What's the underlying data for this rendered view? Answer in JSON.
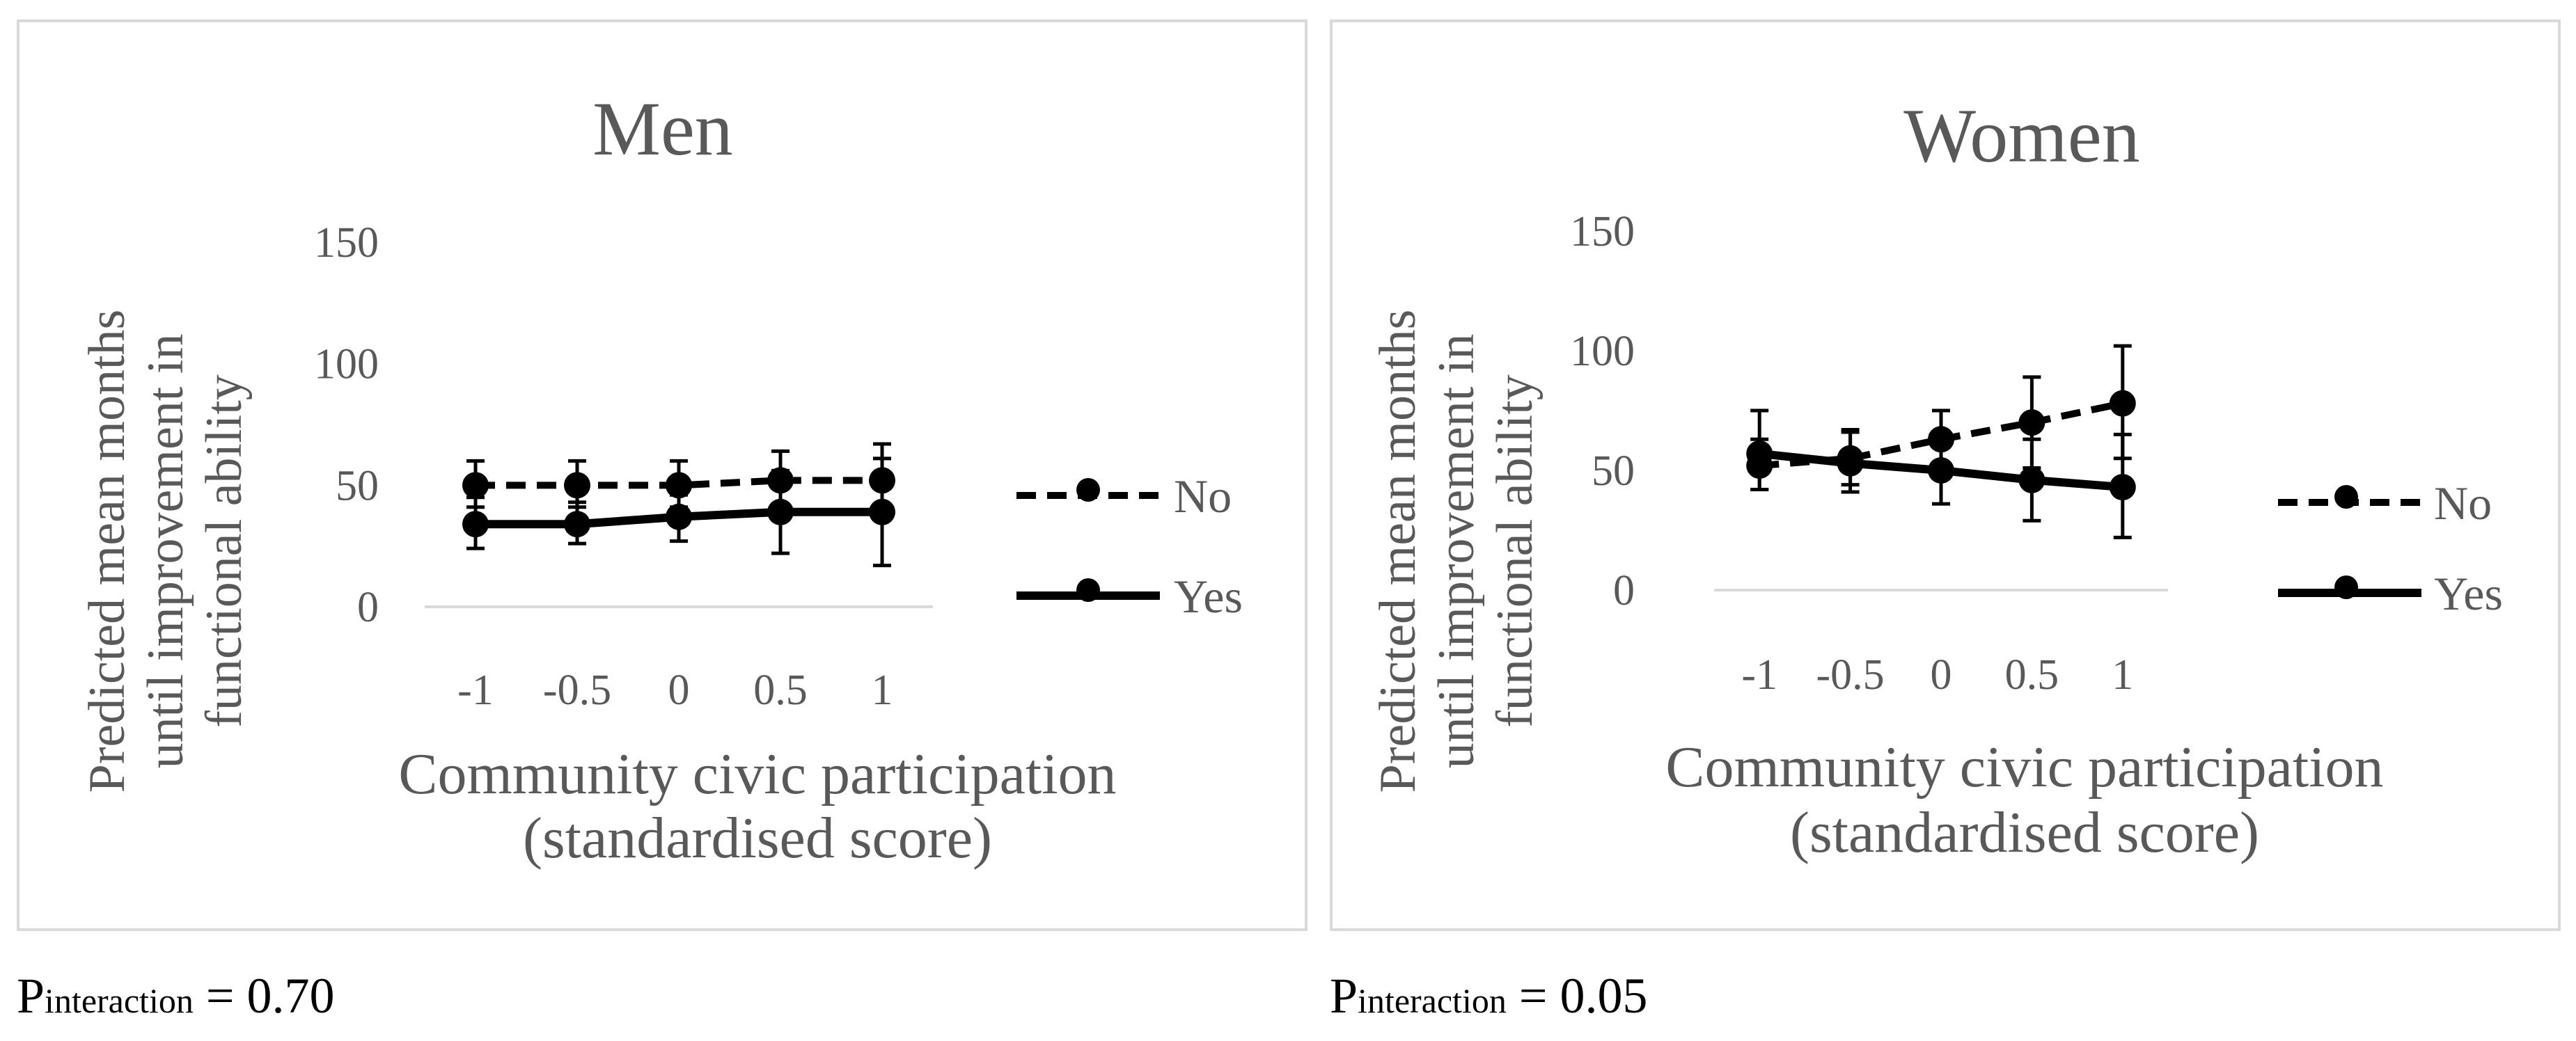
{
  "chart_data": [
    {
      "type": "line",
      "title": "Men",
      "xlabel": [
        "Community civic participation",
        "(standardised score)"
      ],
      "ylabel": [
        "Predicted mean months",
        "until improvement in",
        "functional ability"
      ],
      "categories": [
        "-1",
        "-0.5",
        "0",
        "0.5",
        "1"
      ],
      "y_ticks": [
        "0",
        "50",
        "100",
        "150"
      ],
      "ylim": [
        0,
        150
      ],
      "grid": false,
      "legend_position": "right",
      "series": [
        {
          "name": "No",
          "style": "dashed",
          "values": [
            50,
            50,
            50,
            52,
            52
          ],
          "error_low": [
            41,
            41,
            41,
            41,
            38
          ],
          "error_high": [
            60,
            60,
            60,
            64,
            67
          ]
        },
        {
          "name": "Yes",
          "style": "solid",
          "values": [
            34,
            34,
            37,
            39,
            39
          ],
          "error_low": [
            24,
            26,
            27,
            22,
            17
          ],
          "error_high": [
            45,
            43,
            46,
            56,
            61
          ]
        }
      ],
      "annotation": {
        "prefix": "P",
        "subscript": "interaction",
        "suffix": " = 0.70"
      }
    },
    {
      "type": "line",
      "title": "Women",
      "xlabel": [
        "Community civic participation",
        "(standardised score)"
      ],
      "ylabel": [
        "Predicted mean months",
        "until improvement in",
        "functional ability"
      ],
      "categories": [
        "-1",
        "-0.5",
        "0",
        "0.5",
        "1"
      ],
      "y_ticks": [
        "0",
        "50",
        "100",
        "150"
      ],
      "ylim": [
        0,
        150
      ],
      "grid": false,
      "legend_position": "right",
      "series": [
        {
          "name": "No",
          "style": "dashed",
          "values": [
            52,
            55,
            63,
            70,
            78
          ],
          "error_low": [
            42,
            44,
            51,
            51,
            55
          ],
          "error_high": [
            63,
            67,
            75,
            89,
            102
          ]
        },
        {
          "name": "Yes",
          "style": "solid",
          "values": [
            57,
            53,
            50,
            46,
            43
          ],
          "error_low": [
            42,
            41,
            36,
            29,
            22
          ],
          "error_high": [
            75,
            66,
            65,
            63,
            65
          ]
        }
      ],
      "annotation": {
        "prefix": "P",
        "subscript": "interaction",
        "suffix": " = 0.05"
      }
    }
  ],
  "colors": {
    "series": "#000000",
    "text": "#595959",
    "axis": "#d9d9d9",
    "border": "#d9d9d9"
  }
}
